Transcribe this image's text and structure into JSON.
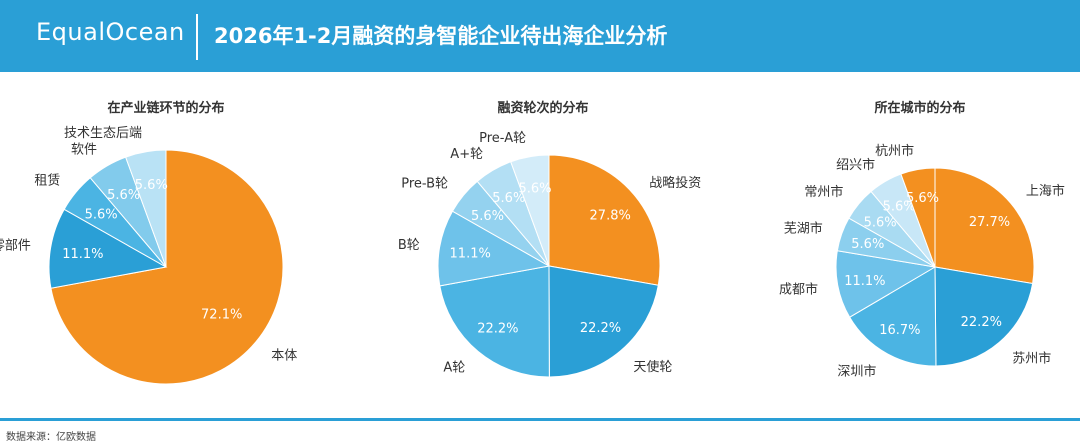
{
  "header": {
    "logo": "EqualOcean",
    "title": "2026年1-2月融资的身智能企业待出海企业分析"
  },
  "footer": {
    "source": "数据来源：亿欧数据"
  },
  "colors": {
    "header_bg": "#2a9fd6",
    "orange": "#f39020"
  },
  "chart_data": [
    {
      "type": "pie",
      "title": "在产业链环节的分布",
      "slices": [
        {
          "label": "本体",
          "value": 72.1,
          "display": "72.1%",
          "color": "#f39020"
        },
        {
          "label": "零部件",
          "value": 11.1,
          "display": "11.1%",
          "color": "#2a9fd6"
        },
        {
          "label": "租赁",
          "value": 5.6,
          "display": "5.6%",
          "color": "#4bb4e3"
        },
        {
          "label": "软件",
          "value": 5.6,
          "display": "5.6%",
          "color": "#82cbec"
        },
        {
          "label": "技术生态后端",
          "value": 5.6,
          "display": "5.6%",
          "color": "#b9e2f5"
        }
      ]
    },
    {
      "type": "pie",
      "title": "融资轮次的分布",
      "slices": [
        {
          "label": "战略投资",
          "value": 27.8,
          "display": "27.8%",
          "color": "#f39020"
        },
        {
          "label": "天使轮",
          "value": 22.2,
          "display": "22.2%",
          "color": "#2a9fd6"
        },
        {
          "label": "A轮",
          "value": 22.2,
          "display": "22.2%",
          "color": "#4bb4e3"
        },
        {
          "label": "B轮",
          "value": 11.1,
          "display": "11.1%",
          "color": "#6ec2ea"
        },
        {
          "label": "Pre-B轮",
          "value": 5.6,
          "display": "5.6%",
          "color": "#94d2ef"
        },
        {
          "label": "A+轮",
          "value": 5.6,
          "display": "5.6%",
          "color": "#b3dff4"
        },
        {
          "label": "Pre-A轮",
          "value": 5.6,
          "display": "5.6%",
          "color": "#d3ecf9"
        }
      ]
    },
    {
      "type": "pie",
      "title": "所在城市的分布",
      "slices": [
        {
          "label": "上海市",
          "value": 27.7,
          "display": "27.7%",
          "color": "#f39020"
        },
        {
          "label": "苏州市",
          "value": 22.2,
          "display": "22.2%",
          "color": "#2a9fd6"
        },
        {
          "label": "深圳市",
          "value": 16.7,
          "display": "16.7%",
          "color": "#4bb4e3"
        },
        {
          "label": "成都市",
          "value": 11.1,
          "display": "11.1%",
          "color": "#6ec2ea"
        },
        {
          "label": "芜湖市",
          "value": 5.6,
          "display": "5.6%",
          "color": "#8ccfee"
        },
        {
          "label": "常州市",
          "value": 5.6,
          "display": "5.6%",
          "color": "#a9dbf2"
        },
        {
          "label": "绍兴市",
          "value": 5.6,
          "display": "5.6%",
          "color": "#c8e7f7"
        },
        {
          "label": "杭州市",
          "value": 5.6,
          "display": "5.6%",
          "color": "#f39020"
        }
      ]
    }
  ]
}
